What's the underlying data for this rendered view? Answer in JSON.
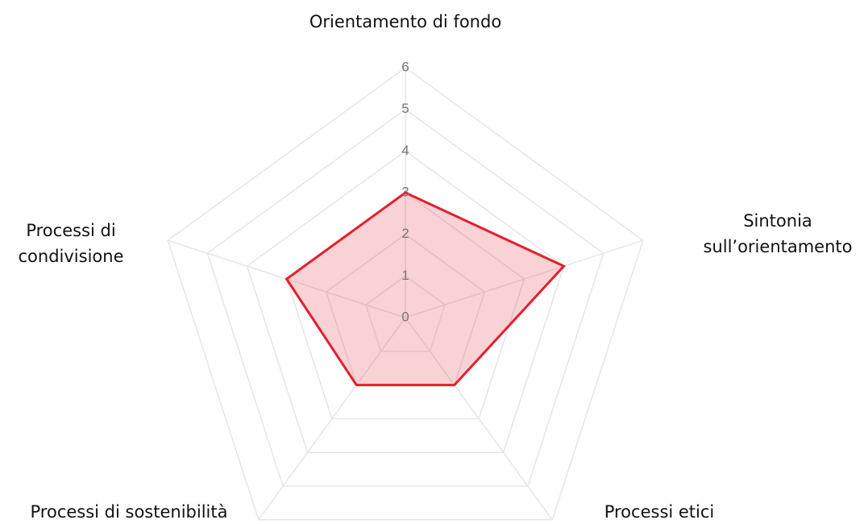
{
  "chart_data": {
    "type": "radar",
    "categories": [
      [
        "Orientamento di fondo"
      ],
      [
        "Sintonia",
        "sull’orientamento"
      ],
      [
        "Processi etici"
      ],
      [
        "Processi di sostenibilità"
      ],
      [
        "Processi di",
        "condivisione"
      ]
    ],
    "values": [
      3,
      4,
      2,
      2,
      3
    ],
    "color": "#e3202e",
    "rlim": [
      0,
      6
    ],
    "rticks": [
      0,
      1,
      2,
      3,
      4,
      5,
      6
    ],
    "grid": true
  }
}
